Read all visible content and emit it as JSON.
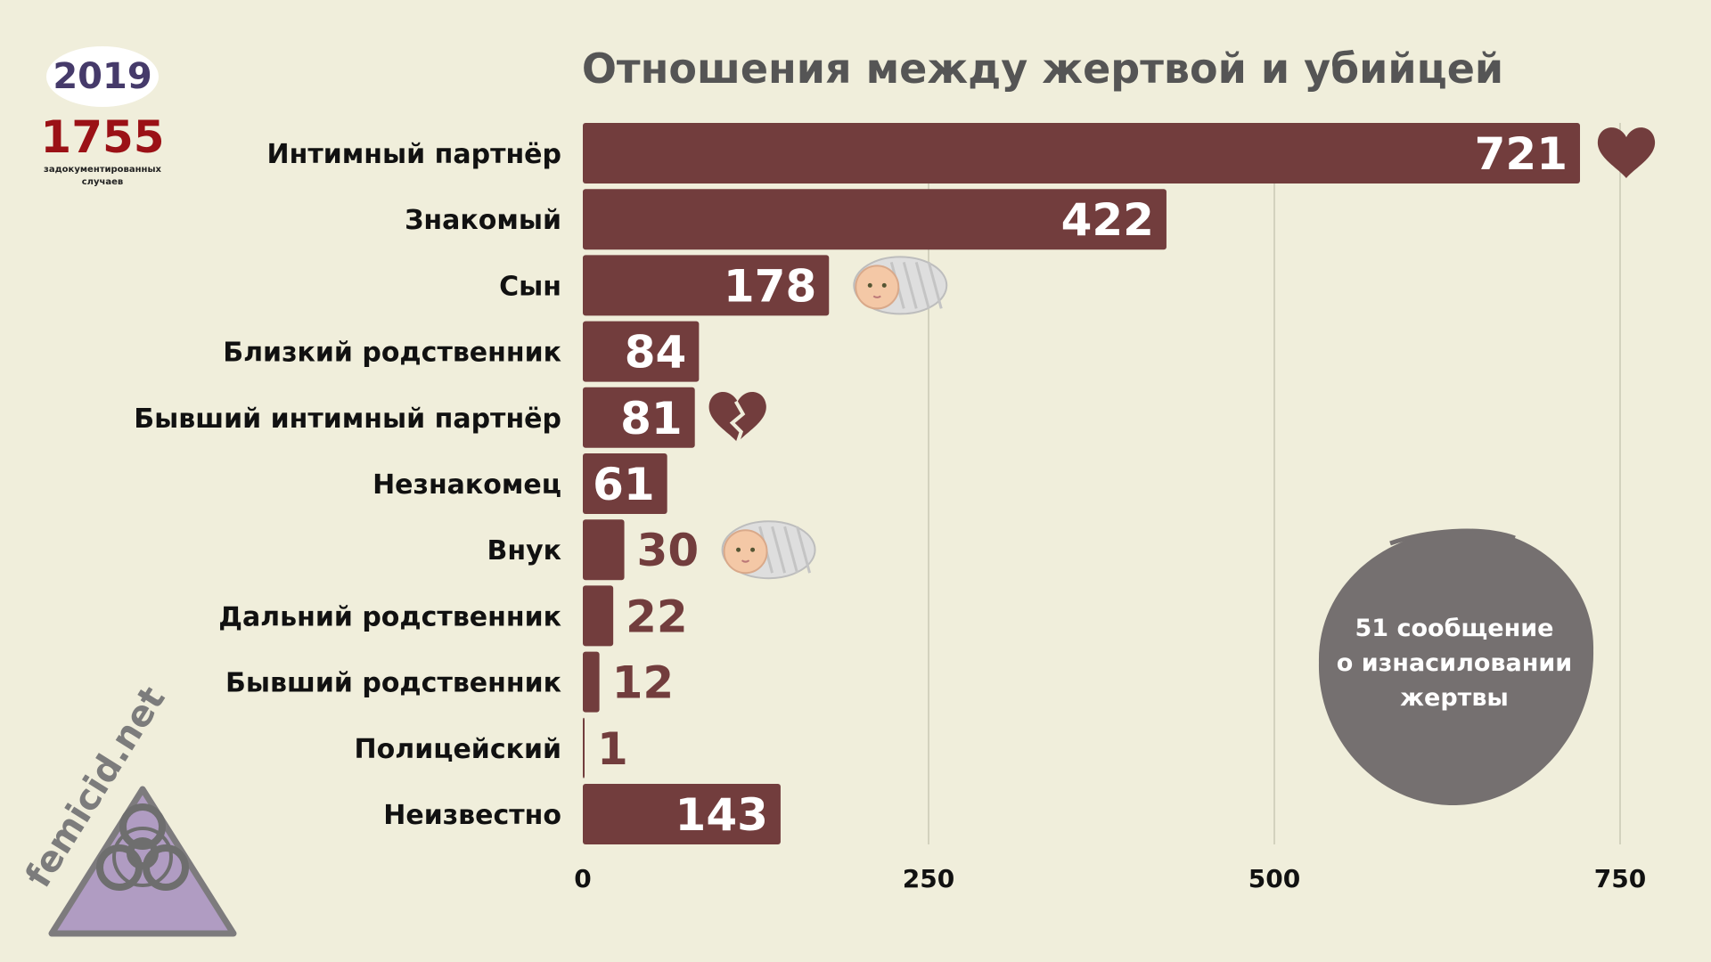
{
  "badge": {
    "year": "2019",
    "total": "1755",
    "caption_line1": "задокументированных",
    "caption_line2": "случаев"
  },
  "watermark": "femicid.net",
  "callout": {
    "line1": "51 сообщение",
    "line2": "о изнасиловании",
    "line3": "жертвы"
  },
  "colors": {
    "background": "#f0eedb",
    "bar": "#723d3d",
    "value_outside": "#723d3d",
    "circle": "#757070",
    "title": "#555555",
    "triangle": "#b09cc2"
  },
  "chart_data": {
    "type": "bar",
    "orientation": "horizontal",
    "title": "Отношения между жертвой и убийцей",
    "categories": [
      "Интимный партнёр",
      "Знакомый",
      "Сын",
      "Близкий родственник",
      "Бывший интимный партнёр",
      "Незнакомец",
      "Внук",
      "Дальний родственник",
      "Бывший родственник",
      "Полицейский",
      "Неизвестно"
    ],
    "values": [
      721,
      422,
      178,
      84,
      81,
      61,
      30,
      22,
      12,
      1,
      143
    ],
    "xlim": [
      0,
      750
    ],
    "xticks": [
      0,
      250,
      500,
      750
    ],
    "grid": true,
    "icons": [
      "heart-icon",
      "",
      "baby-icon",
      "",
      "broken-heart-icon",
      "",
      "baby-icon",
      "",
      "",
      "",
      ""
    ]
  }
}
